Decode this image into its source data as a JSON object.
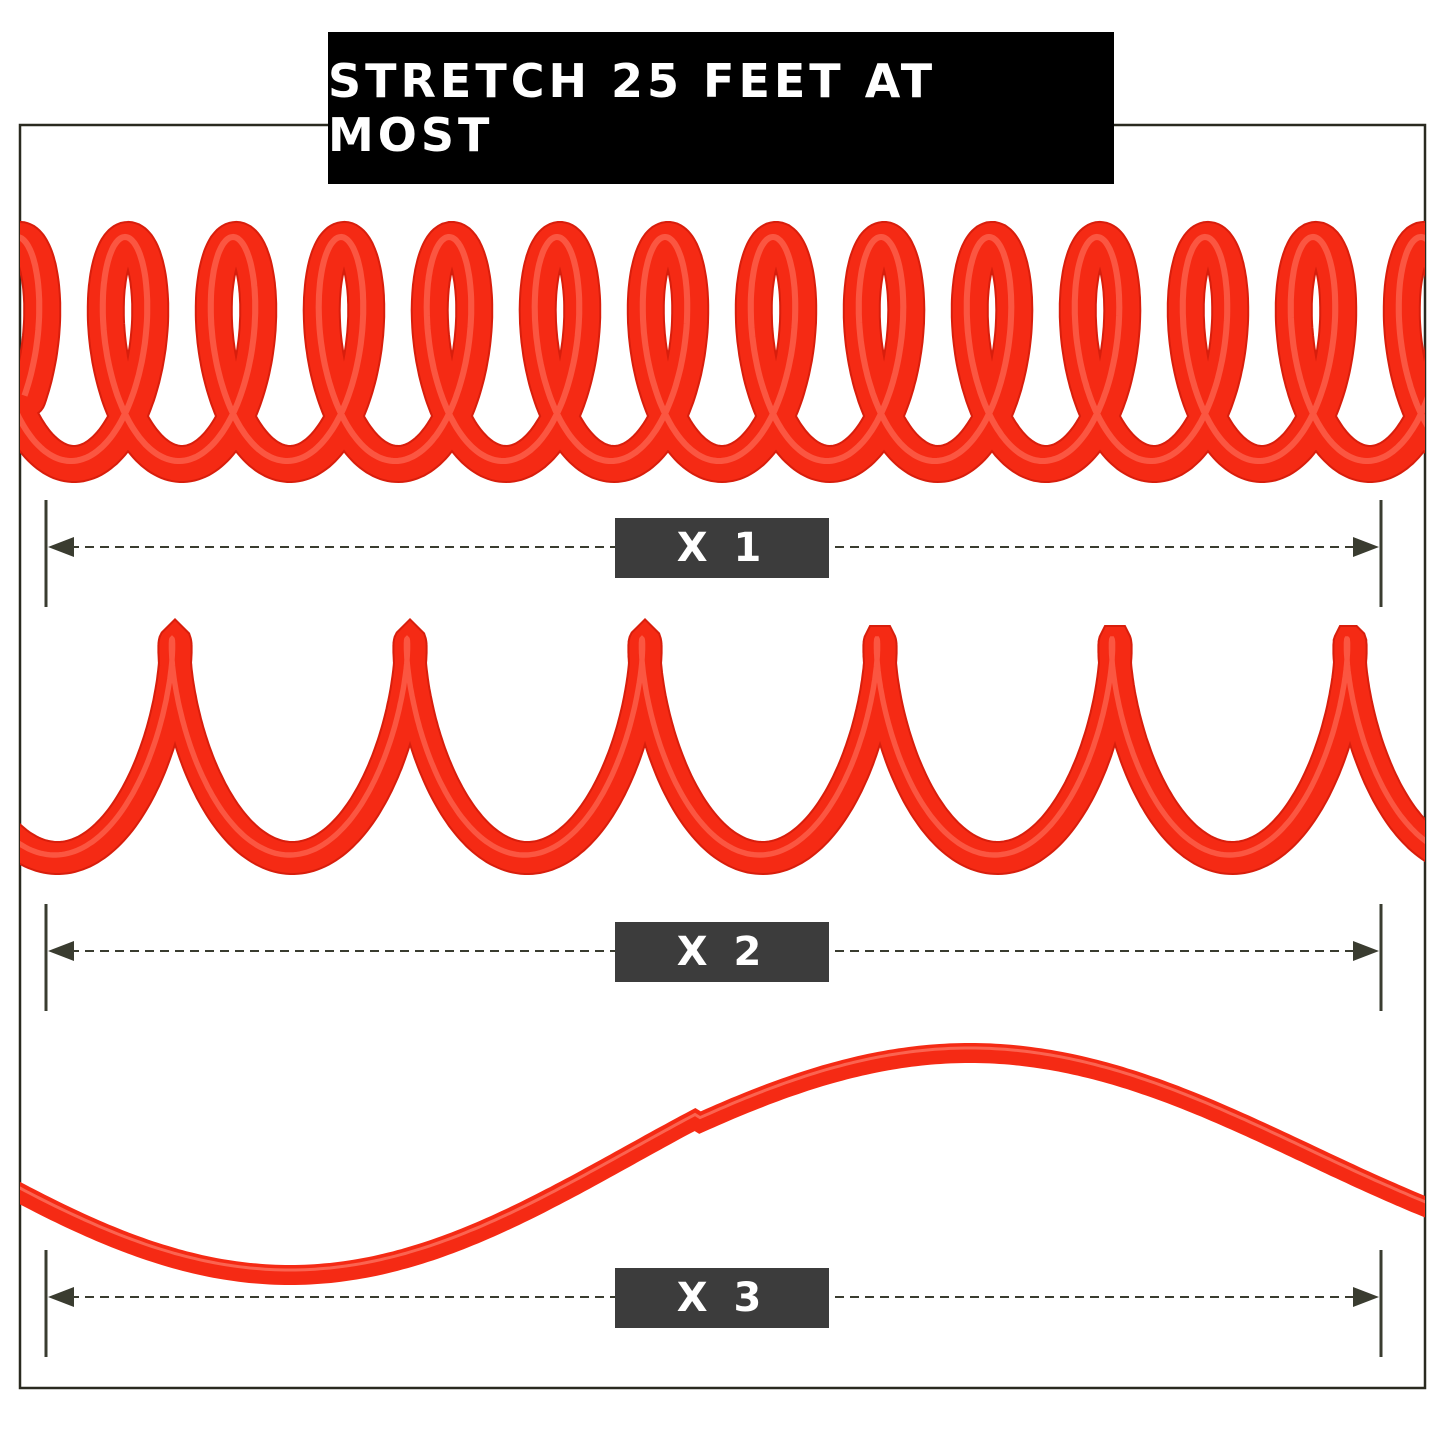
{
  "title": "STRETCH 25 FEET AT MOST",
  "stretch_levels": [
    {
      "label": "X 1"
    },
    {
      "label": "X 2"
    },
    {
      "label": "X 3"
    }
  ],
  "colors": {
    "hose": "#f52a14",
    "title_bg": "#000000",
    "label_bg": "#3c3c3c",
    "frame": "#2a2a20"
  }
}
